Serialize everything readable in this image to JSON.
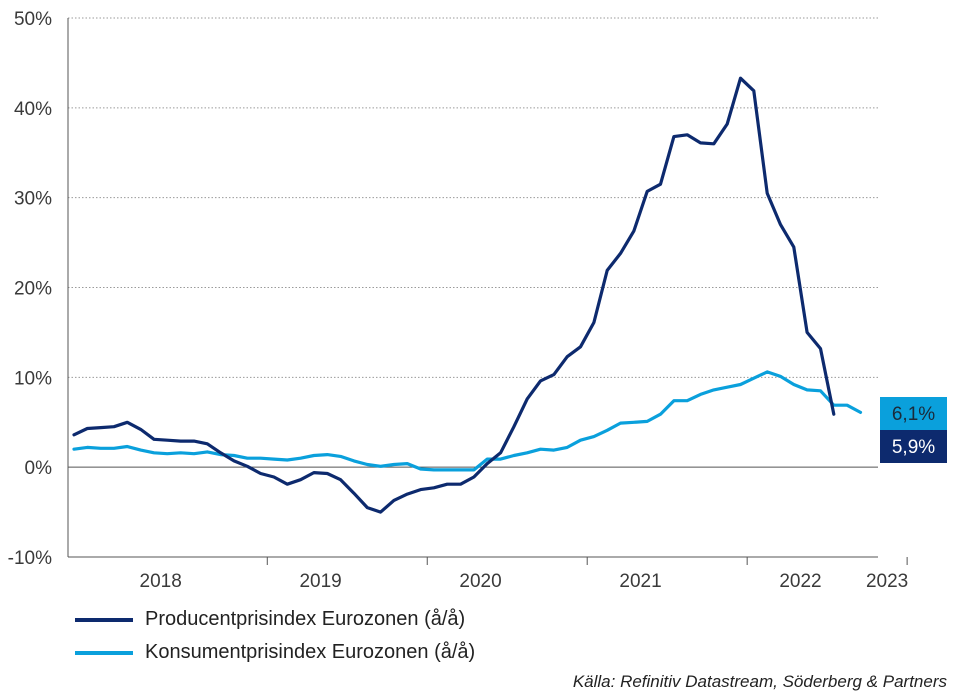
{
  "chart_data": {
    "type": "line",
    "y_ticks": [
      "50%",
      "40%",
      "30%",
      "20%",
      "10%",
      "0%",
      "-10%"
    ],
    "ylim": [
      -10,
      50
    ],
    "x_ticks": [
      "2018",
      "2019",
      "2020",
      "2021",
      "2022",
      "2023"
    ],
    "x_start": "2017-10",
    "grid": true,
    "series": [
      {
        "name": "Producentprisindex Eurozonen (å/å)",
        "color": "#0d2a6e",
        "end_label": "5,9%",
        "values": [
          3.6,
          4.3,
          4.4,
          4.5,
          5.0,
          4.2,
          3.1,
          3.0,
          2.9,
          2.9,
          2.6,
          1.6,
          0.7,
          0.1,
          -0.7,
          -1.1,
          -1.9,
          -1.4,
          -0.6,
          -0.7,
          -1.4,
          -2.9,
          -4.5,
          -5.0,
          -3.7,
          -3.0,
          -2.5,
          -2.3,
          -1.9,
          -1.9,
          -1.1,
          0.4,
          1.6,
          4.5,
          7.6,
          9.6,
          10.3,
          12.3,
          13.4,
          16.1,
          21.9,
          23.8,
          26.3,
          30.7,
          31.5,
          36.8,
          37.0,
          36.1,
          36.0,
          38.2,
          43.3,
          41.9,
          30.5,
          27.0,
          24.5,
          15.0,
          13.2,
          5.9
        ]
      },
      {
        "name": "Konsumentprisindex Eurozonen (å/å)",
        "color": "#0aa0dc",
        "end_label": "6,1%",
        "values": [
          2.0,
          2.2,
          2.1,
          2.1,
          2.3,
          1.9,
          1.6,
          1.5,
          1.6,
          1.5,
          1.7,
          1.4,
          1.3,
          1.0,
          1.0,
          0.9,
          0.8,
          1.0,
          1.3,
          1.4,
          1.2,
          0.7,
          0.3,
          0.1,
          0.3,
          0.4,
          -0.2,
          -0.3,
          -0.3,
          -0.3,
          -0.3,
          0.9,
          0.9,
          1.3,
          1.6,
          2.0,
          1.9,
          2.2,
          3.0,
          3.4,
          4.1,
          4.9,
          5.0,
          5.1,
          5.9,
          7.4,
          7.4,
          8.1,
          8.6,
          8.9,
          9.2,
          9.9,
          10.6,
          10.1,
          9.2,
          8.6,
          8.5,
          6.9,
          6.9,
          6.1
        ]
      }
    ]
  },
  "source": "Källa: Refinitiv Datastream, Söderberg & Partners"
}
